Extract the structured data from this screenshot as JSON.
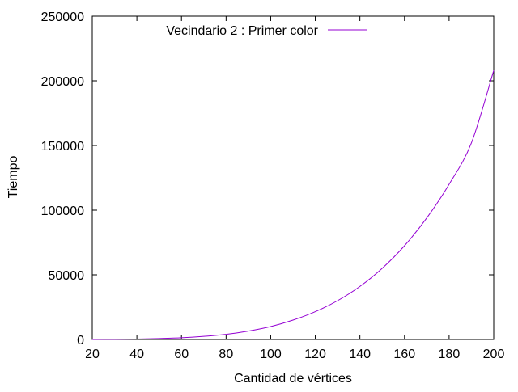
{
  "chart_data": {
    "type": "line",
    "xlabel": "Cantidad de vértices",
    "ylabel": "Tiempo",
    "xlim": [
      20,
      200
    ],
    "ylim": [
      0,
      250000
    ],
    "x_ticks": [
      "20",
      "40",
      "60",
      "80",
      "100",
      "120",
      "140",
      "160",
      "180",
      "200"
    ],
    "y_ticks": [
      "0",
      "50000",
      "100000",
      "150000",
      "200000",
      "250000"
    ],
    "grid": false,
    "legend_position": "top-left",
    "series": [
      {
        "name": "Vecindario 2 : Primer color",
        "color": "#9400d3",
        "x": [
          20,
          30,
          40,
          50,
          60,
          70,
          80,
          90,
          100,
          110,
          120,
          130,
          140,
          150,
          160,
          170,
          180,
          190,
          200
        ],
        "y": [
          20,
          100,
          300,
          700,
          1300,
          2400,
          4000,
          6500,
          10000,
          15000,
          21500,
          30000,
          41000,
          55000,
          72500,
          94000,
          120000,
          152000,
          208000
        ]
      }
    ]
  }
}
